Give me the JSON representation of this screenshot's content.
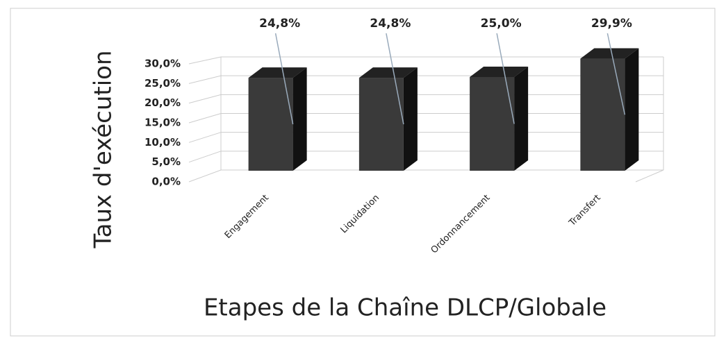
{
  "chart_data": {
    "type": "bar3d",
    "y_axis_label": "Taux d'exécution",
    "x_axis_label": "Etapes de la Chaîne DLCP/Globale",
    "categories": [
      "Engagement",
      "Liquidation",
      "Ordonnancement",
      "Transfert"
    ],
    "values": [
      24.8,
      24.8,
      25.0,
      29.9
    ],
    "value_labels": [
      "24,8%",
      "24,8%",
      "25,0%",
      "29,9%"
    ],
    "color": "#3a3a3a",
    "ylim": [
      0,
      30
    ],
    "yticks": [
      {
        "value": 0,
        "label": "0,0%"
      },
      {
        "value": 5,
        "label": "5,0%"
      },
      {
        "value": 10,
        "label": "10,0%"
      },
      {
        "value": 15,
        "label": "15,0%"
      },
      {
        "value": 20,
        "label": "20,0%"
      },
      {
        "value": 25,
        "label": "25,0%"
      },
      {
        "value": 30,
        "label": "30,0%"
      }
    ],
    "grid": true
  }
}
